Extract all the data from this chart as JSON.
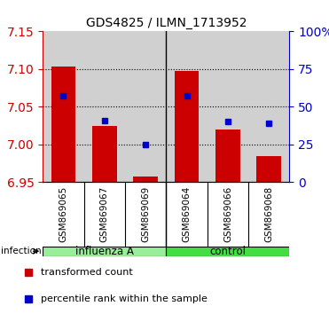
{
  "title": "GDS4825 / ILMN_1713952",
  "samples": [
    "GSM869065",
    "GSM869067",
    "GSM869069",
    "GSM869064",
    "GSM869066",
    "GSM869068"
  ],
  "red_values": [
    7.103,
    7.025,
    6.957,
    7.098,
    7.02,
    6.985
  ],
  "blue_values": [
    7.065,
    7.032,
    7.0,
    7.065,
    7.03,
    7.028
  ],
  "baseline": 6.95,
  "ylim_left": [
    6.95,
    7.15
  ],
  "ylim_right": [
    0,
    100
  ],
  "left_ticks": [
    6.95,
    7.0,
    7.05,
    7.1,
    7.15
  ],
  "right_ticks": [
    0,
    25,
    50,
    75,
    100
  ],
  "right_tick_labels": [
    "0",
    "25",
    "50",
    "75",
    "100%"
  ],
  "infection_label": "infection",
  "bar_color": "#cc0000",
  "marker_color": "#0000cc",
  "bar_width": 0.6,
  "background_color": "#ffffff",
  "plot_bg_color": "#d0d0d0",
  "left_tick_color": "#cc0000",
  "right_tick_color": "#0000cc",
  "influenza_color": "#99ee99",
  "control_color": "#44dd44",
  "group_border_color": "#000000"
}
